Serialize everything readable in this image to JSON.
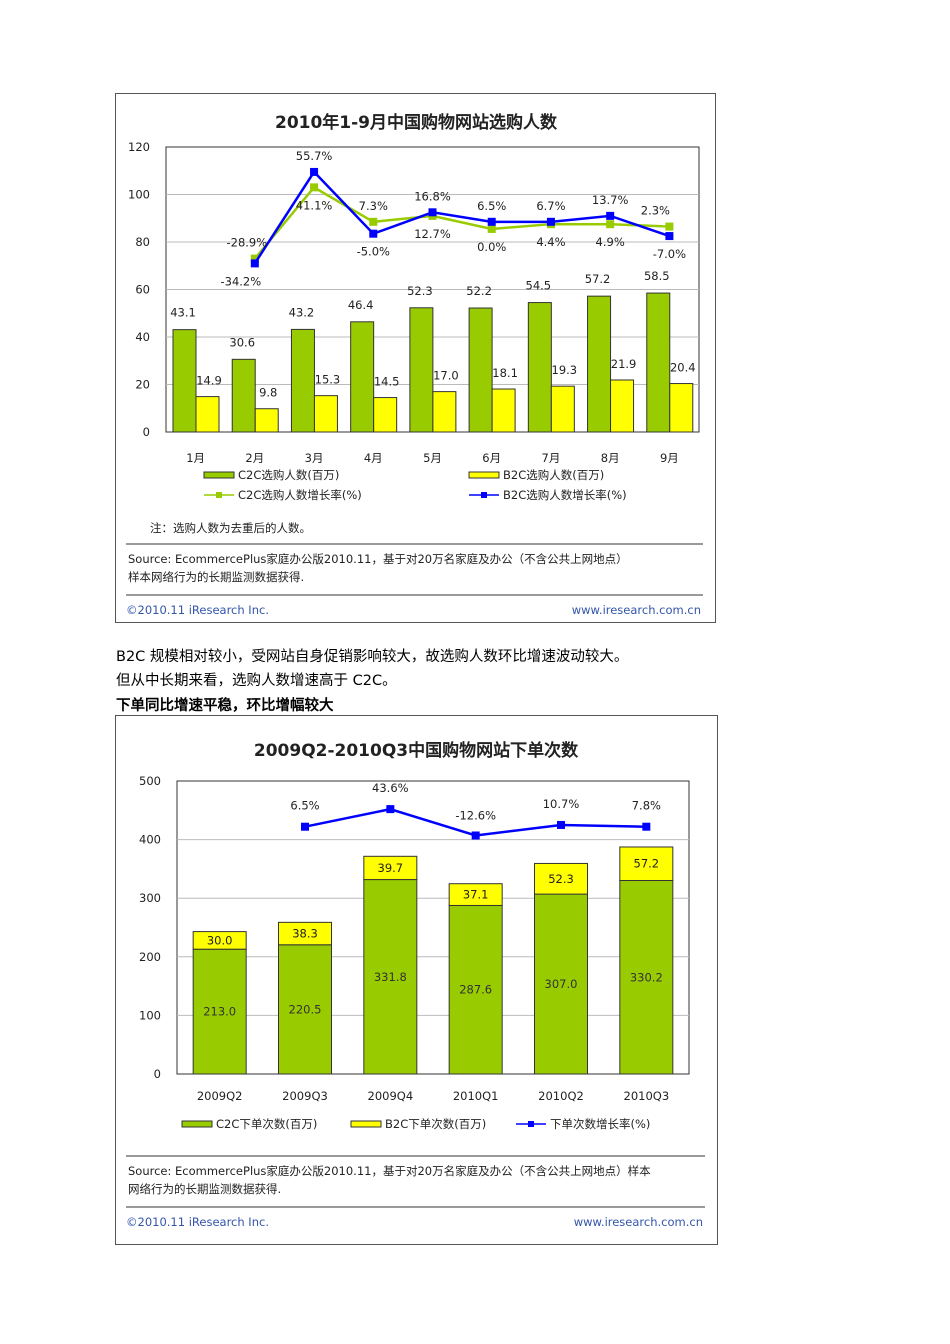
{
  "chart_data": [
    {
      "type": "bar+line",
      "title": "2010年1-9月中国购物网站选购人数",
      "categories": [
        "1月",
        "2月",
        "3月",
        "4月",
        "5月",
        "6月",
        "7月",
        "8月",
        "9月"
      ],
      "ylim": [
        0,
        120
      ],
      "yticks": [
        0,
        20,
        40,
        60,
        80,
        100,
        120
      ],
      "grid": true,
      "legend_position": "bottom",
      "series": [
        {
          "name": "C2C选购人数(百万)",
          "kind": "bar",
          "color": "#99cc00",
          "values": [
            43.1,
            30.6,
            43.2,
            46.4,
            52.3,
            52.2,
            54.5,
            57.2,
            58.5
          ]
        },
        {
          "name": "B2C选购人数(百万)",
          "kind": "bar",
          "color": "#ffff00",
          "values": [
            14.9,
            9.8,
            15.3,
            14.5,
            17.0,
            18.1,
            19.3,
            21.9,
            20.4
          ]
        },
        {
          "name": "C2C选购人数增长率(%)",
          "kind": "line",
          "color": "#99cc00",
          "labels": [
            null,
            "-28.9%",
            "41.1%",
            "7.3%",
            "12.7%",
            "0.0%",
            "4.4%",
            "4.9%",
            "2.3%"
          ],
          "plot_values": [
            null,
            73,
            103,
            88.5,
            91,
            85.5,
            87.5,
            87.5,
            86.5
          ]
        },
        {
          "name": "B2C选购人数增长率(%)",
          "kind": "line",
          "color": "#0000ff",
          "labels": [
            null,
            "-34.2%",
            "55.7%",
            "-5.0%",
            "16.8%",
            "6.5%",
            "6.7%",
            "13.7%",
            "-7.0%"
          ],
          "plot_values": [
            null,
            71,
            109.5,
            83.5,
            92.5,
            88.5,
            88.5,
            91,
            82.5
          ]
        }
      ],
      "note": "注：选购人数为去重后的人数。",
      "source": [
        "Source: EcommercePlus家庭办公版2010.11，基于对20万名家庭及办公（不含公共上网地点）",
        "样本网络行为的长期监测数据获得."
      ],
      "copyright": "©2010.11 iResearch Inc.",
      "website": "www.iresearch.com.cn"
    },
    {
      "type": "stacked-bar+line",
      "title": "2009Q2-2010Q3中国购物网站下单次数",
      "categories": [
        "2009Q2",
        "2009Q3",
        "2009Q4",
        "2010Q1",
        "2010Q2",
        "2010Q3"
      ],
      "ylim": [
        0,
        500
      ],
      "yticks": [
        0,
        100,
        200,
        300,
        400,
        500
      ],
      "grid": true,
      "legend_position": "bottom",
      "series": [
        {
          "name": "C2C下单次数(百万)",
          "kind": "bar",
          "color": "#99cc00",
          "values": [
            213.0,
            220.5,
            331.8,
            287.6,
            307.0,
            330.2
          ]
        },
        {
          "name": "B2C下单次数(百万)",
          "kind": "bar",
          "color": "#ffff00",
          "values": [
            30.0,
            38.3,
            39.7,
            37.1,
            52.3,
            57.2
          ]
        },
        {
          "name": "下单次数增长率(%)",
          "kind": "line",
          "color": "#0000ff",
          "labels": [
            null,
            "6.5%",
            "43.6%",
            "-12.6%",
            "10.7%",
            "7.8%"
          ],
          "plot_values": [
            null,
            422,
            452,
            407,
            425,
            422
          ]
        }
      ],
      "source": [
        "Source: EcommercePlus家庭办公版2010.11，基于对20万名家庭及办公（不含公共上网地点）样本",
        "网络行为的长期监测数据获得."
      ],
      "copyright": "©2010.11 iResearch Inc.",
      "website": "www.iresearch.com.cn"
    }
  ],
  "text": {
    "line1": "B2C 规模相对较小，受网站自身促销影响较大，故选购人数环比增速波动较大。",
    "line2": "但从中长期来看，选购人数增速高于 C2C。",
    "heading": "下单同比增速平稳，环比增幅较大"
  }
}
